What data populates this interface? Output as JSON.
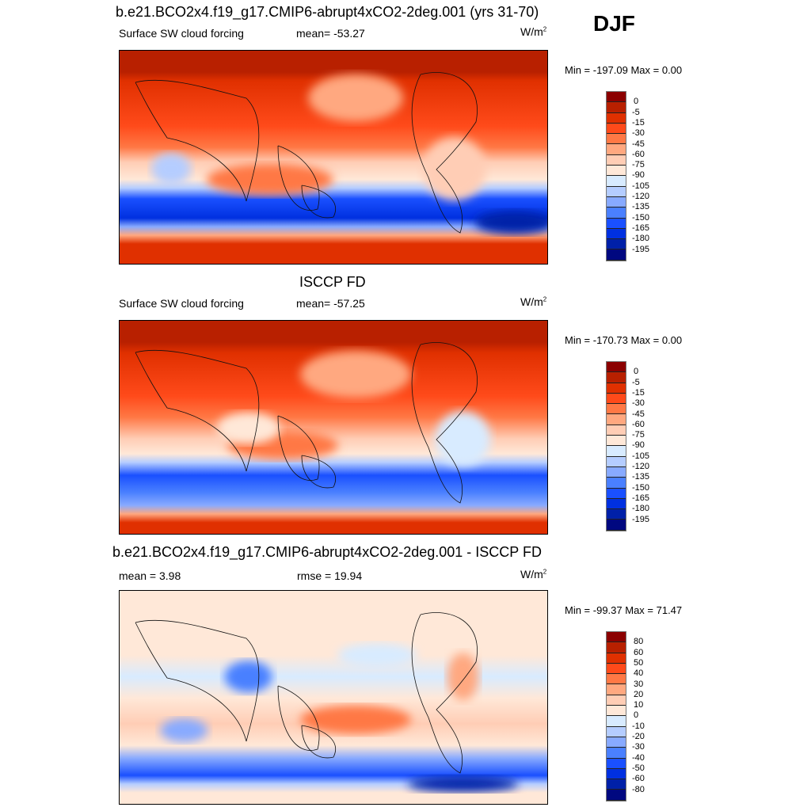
{
  "season": "DJF",
  "colors": [
    "#8b0000",
    "#b82000",
    "#e03000",
    "#ff4a1a",
    "#ff7845",
    "#ffa880",
    "#ffcdb5",
    "#ffe8d8",
    "#d8ebff",
    "#b5cdff",
    "#88aaff",
    "#4a80ff",
    "#1a50ff",
    "#0030e0",
    "#0020a8",
    "#000880"
  ],
  "panels": [
    {
      "title": "b.e21.BCO2x4.f19_g17.CMIP6-abrupt4xCO2-2deg.001 (yrs 31-70)",
      "left": "Surface SW cloud forcing",
      "center": "mean= -53.27",
      "units": "W/m",
      "units_sup": "2",
      "minmax": "Min = -197.09 Max =   0.00",
      "levels": [
        "0",
        "-5",
        "-15",
        "-30",
        "-45",
        "-60",
        "-75",
        "-90",
        "-105",
        "-120",
        "-135",
        "-150",
        "-165",
        "-180",
        "-195"
      ]
    },
    {
      "title": "ISCCP FD",
      "left": "Surface SW cloud forcing",
      "center": "mean= -57.25",
      "units": "W/m",
      "units_sup": "2",
      "minmax": "Min = -170.73 Max =   0.00",
      "levels": [
        "0",
        "-5",
        "-15",
        "-30",
        "-45",
        "-60",
        "-75",
        "-90",
        "-105",
        "-120",
        "-135",
        "-150",
        "-165",
        "-180",
        "-195"
      ]
    },
    {
      "title": "b.e21.BCO2x4.f19_g17.CMIP6-abrupt4xCO2-2deg.001 - ISCCP FD",
      "left": "mean =   3.98",
      "center": "rmse =  19.94",
      "units": "W/m",
      "units_sup": "2",
      "minmax": "Min = -99.37 Max =  71.47",
      "levels": [
        "80",
        "60",
        "50",
        "40",
        "30",
        "20",
        "10",
        "0",
        "-10",
        "-20",
        "-30",
        "-40",
        "-50",
        "-60",
        "-80"
      ]
    }
  ]
}
